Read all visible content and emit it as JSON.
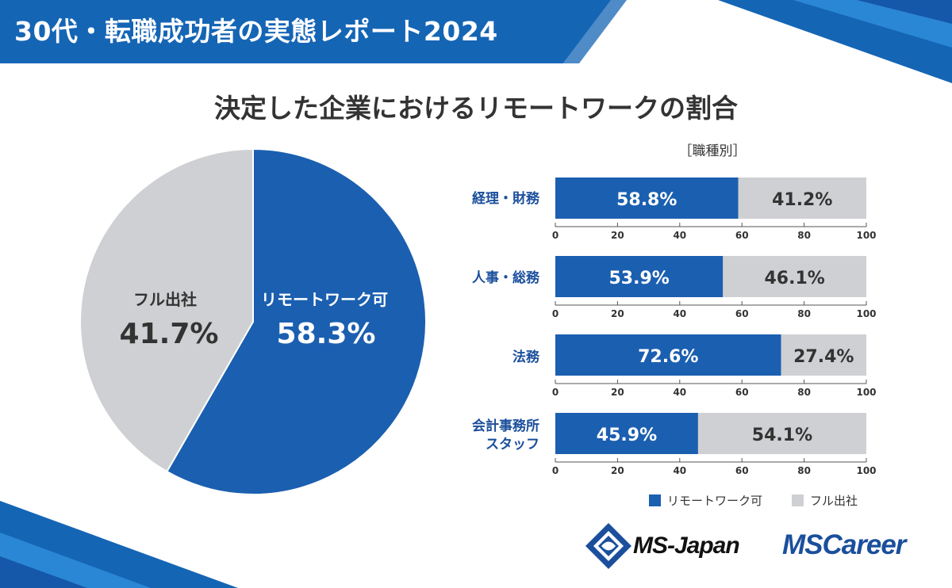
{
  "header": {
    "title": "30代・転職成功者の実態レポート2024"
  },
  "chart_title": "決定した企業におけるリモートワークの割合",
  "colors": {
    "remote": "#1b5fb0",
    "office": "#cfd0d3",
    "brand": "#1b4f9c",
    "header_bg": "#1565b5"
  },
  "chart_data": [
    {
      "type": "pie",
      "title": "決定した企業におけるリモートワークの割合",
      "slices": [
        {
          "label": "リモートワーク可",
          "value": 58.3,
          "display": "58.3%"
        },
        {
          "label": "フル出社",
          "value": 41.7,
          "display": "41.7%"
        }
      ]
    },
    {
      "type": "bar",
      "orientation": "horizontal",
      "stacked": true,
      "subtitle": "［職種別］",
      "categories": [
        [
          "経理・財務"
        ],
        [
          "人事・総務"
        ],
        [
          "法務"
        ],
        [
          "会計事務所",
          "スタッフ"
        ]
      ],
      "series": [
        {
          "name": "リモートワーク可",
          "values": [
            58.8,
            53.9,
            72.6,
            45.9
          ],
          "labels": [
            "58.8%",
            "53.9%",
            "72.6%",
            "45.9%"
          ]
        },
        {
          "name": "フル出社",
          "values": [
            41.2,
            46.1,
            27.4,
            54.1
          ],
          "labels": [
            "41.2%",
            "46.1%",
            "27.4%",
            "54.1%"
          ]
        }
      ],
      "xlim": [
        0,
        100
      ],
      "ticks": [
        "0",
        "20",
        "40",
        "60",
        "80",
        "100"
      ],
      "legend": [
        "リモートワーク可",
        "フル出社"
      ]
    }
  ],
  "logos": {
    "ms_japan": "MS-Japan",
    "ms_career": "MSCareer"
  }
}
